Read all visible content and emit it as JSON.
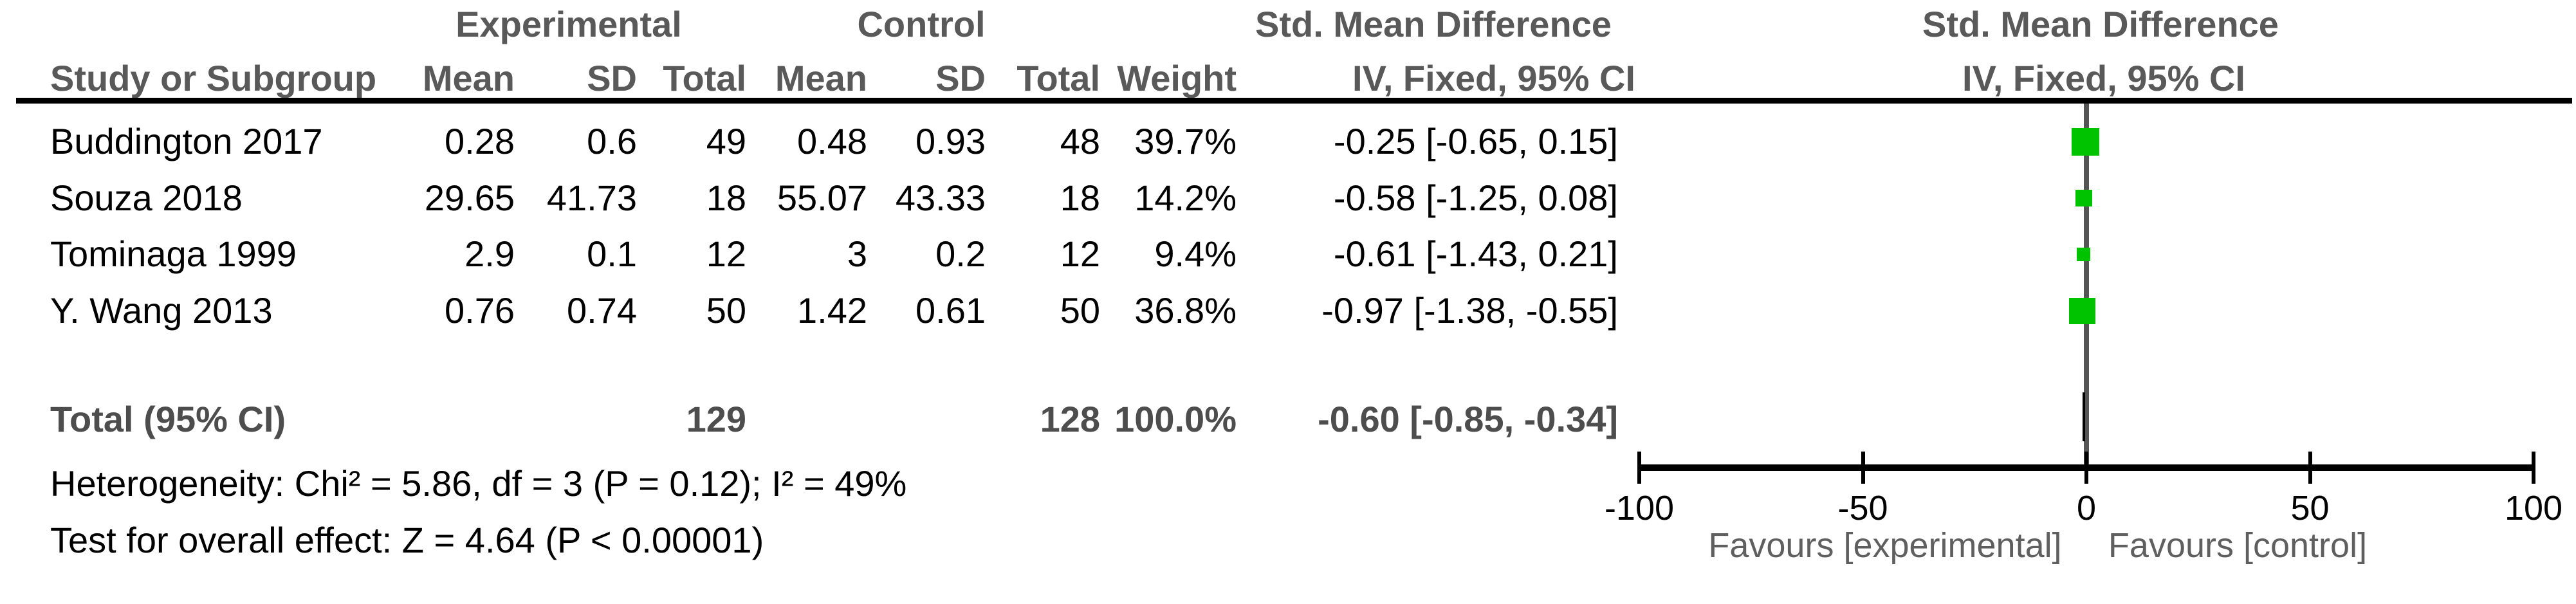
{
  "colors": {
    "square_green": "#00c300",
    "center_line_gray": "#555555",
    "header_gray": "#595959",
    "total_row_gray": "#4d4d4d",
    "favours_gray": "#5f5f5f",
    "axis_black": "#000000"
  },
  "header": {
    "experimental": "Experimental",
    "control": "Control",
    "smd_left": "Std. Mean Difference",
    "smd_right": "Std. Mean Difference",
    "study": "Study or Subgroup",
    "mean_e": "Mean",
    "sd_e": "SD",
    "total_e": "Total",
    "mean_c": "Mean",
    "sd_c": "SD",
    "total_c": "Total",
    "weight": "Weight",
    "iv_left": "IV, Fixed, 95% CI",
    "iv_right": "IV, Fixed, 95% CI"
  },
  "studies": [
    {
      "name": "Buddington 2017",
      "mean_e": "0.28",
      "sd_e": "0.6",
      "total_e": "49",
      "mean_c": "0.48",
      "sd_c": "0.93",
      "total_c": "48",
      "weight": "39.7%",
      "ci": "-0.25 [-0.65, 0.15]"
    },
    {
      "name": "Souza 2018",
      "mean_e": "29.65",
      "sd_e": "41.73",
      "total_e": "18",
      "mean_c": "55.07",
      "sd_c": "43.33",
      "total_c": "18",
      "weight": "14.2%",
      "ci": "-0.58 [-1.25, 0.08]"
    },
    {
      "name": "Tominaga 1999",
      "mean_e": "2.9",
      "sd_e": "0.1",
      "total_e": "12",
      "mean_c": "3",
      "sd_c": "0.2",
      "total_c": "12",
      "weight": "9.4%",
      "ci": "-0.61 [-1.43, 0.21]"
    },
    {
      "name": "Y. Wang 2013",
      "mean_e": "0.76",
      "sd_e": "0.74",
      "total_e": "50",
      "mean_c": "1.42",
      "sd_c": "0.61",
      "total_c": "50",
      "weight": "36.8%",
      "ci": "-0.97 [-1.38, -0.55]"
    }
  ],
  "total": {
    "label": "Total (95% CI)",
    "total_e": "129",
    "total_c": "128",
    "weight": "100.0%",
    "ci": "-0.60 [-0.85, -0.34]"
  },
  "footnotes": {
    "heterogeneity": "Heterogeneity: Chi² = 5.86, df = 3 (P = 0.12); I² = 49%",
    "overall_effect": "Test for overall effect: Z = 4.64 (P < 0.00001)"
  },
  "axis": {
    "tick_labels": [
      "-100",
      "-50",
      "0",
      "50",
      "100"
    ],
    "favours_left": "Favours [experimental]",
    "favours_right": "Favours [control]"
  },
  "chart_data": {
    "type": "forest",
    "title": "Std. Mean Difference forest plot",
    "effect_measure": "Std. Mean Difference",
    "method": "IV, Fixed, 95% CI",
    "xlim": [
      -100,
      100
    ],
    "ticks": [
      -100,
      -50,
      0,
      50,
      100
    ],
    "xlabel_left": "Favours [experimental]",
    "xlabel_right": "Favours [control]",
    "studies": [
      {
        "name": "Buddington 2017",
        "smd": -0.25,
        "ci_low": -0.65,
        "ci_high": 0.15,
        "weight_pct": 39.7
      },
      {
        "name": "Souza 2018",
        "smd": -0.58,
        "ci_low": -1.25,
        "ci_high": 0.08,
        "weight_pct": 14.2
      },
      {
        "name": "Tominaga 1999",
        "smd": -0.61,
        "ci_low": -1.43,
        "ci_high": 0.21,
        "weight_pct": 9.4
      },
      {
        "name": "Y. Wang 2013",
        "smd": -0.97,
        "ci_low": -1.38,
        "ci_high": -0.55,
        "weight_pct": 36.8
      }
    ],
    "total": {
      "smd": -0.6,
      "ci_low": -0.85,
      "ci_high": -0.34,
      "n_experimental": 129,
      "n_control": 128,
      "weight_pct": 100.0
    },
    "heterogeneity": {
      "chi2": 5.86,
      "df": 3,
      "p": 0.12,
      "i2_pct": 49
    },
    "overall_effect": {
      "z": 4.64,
      "p": "< 0.00001"
    }
  }
}
